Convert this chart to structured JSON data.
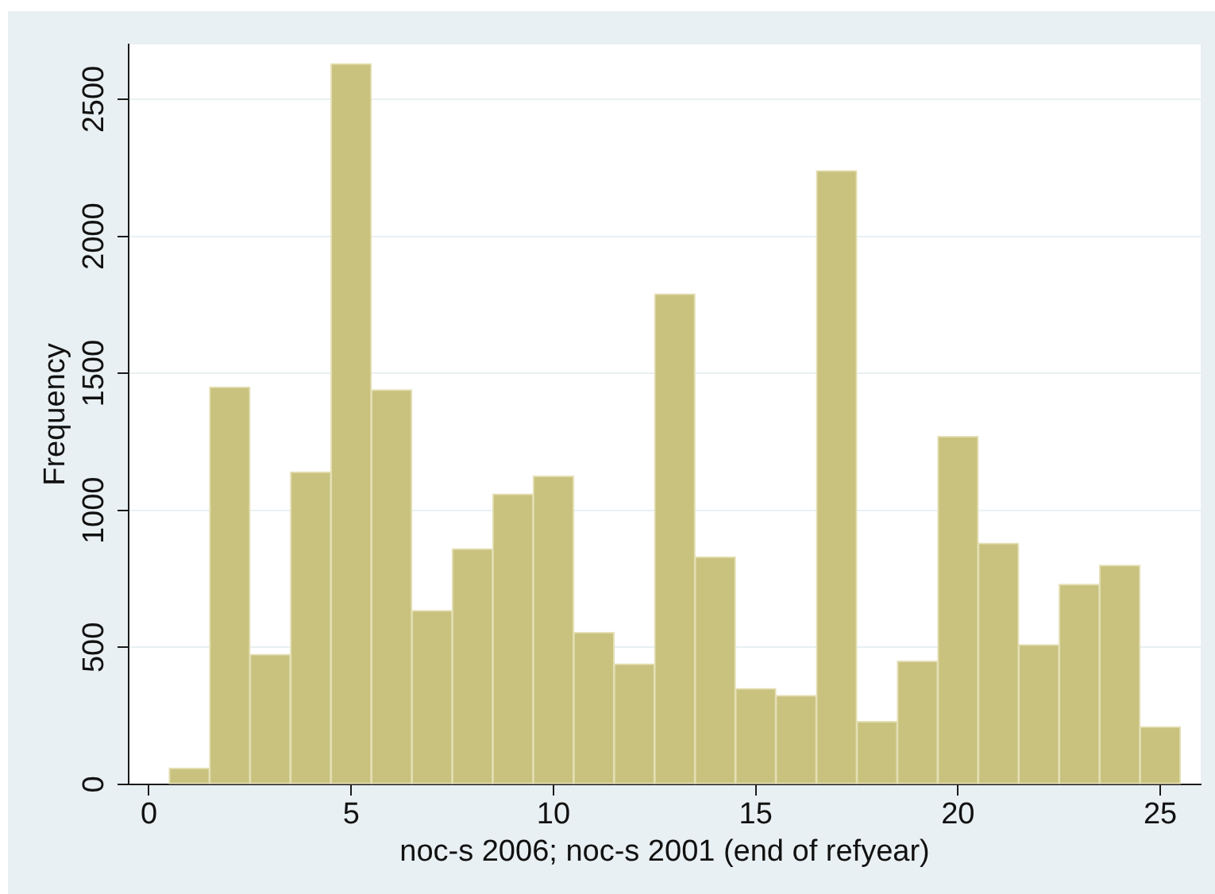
{
  "chart_data": {
    "type": "histogram",
    "xlabel": "noc-s 2006; noc-s 2001 (end of refyear)",
    "ylabel": "Frequency",
    "bins": [
      0.5,
      1.5,
      2.5,
      3.5,
      4.5,
      5.5,
      6.5,
      7.5,
      8.5,
      9.5,
      10.5,
      11.5,
      12.5,
      13.5,
      14.5,
      15.5,
      16.5,
      17.5,
      18.5,
      19.5,
      20.5,
      21.5,
      22.5,
      23.5,
      24.5,
      25.5
    ],
    "values": [
      60,
      1450,
      475,
      1140,
      2630,
      1440,
      635,
      860,
      1060,
      1125,
      555,
      440,
      1790,
      830,
      350,
      325,
      2240,
      230,
      450,
      1270,
      880,
      510,
      730,
      800,
      210
    ],
    "color": "#c9c27f",
    "xlim": [
      -0.5,
      26
    ],
    "xticks": [
      0,
      5,
      10,
      15,
      20,
      25
    ],
    "ylim": [
      0,
      2700
    ],
    "yticks": [
      0,
      500,
      1000,
      1500,
      2000,
      2500
    ],
    "grid": "y"
  }
}
